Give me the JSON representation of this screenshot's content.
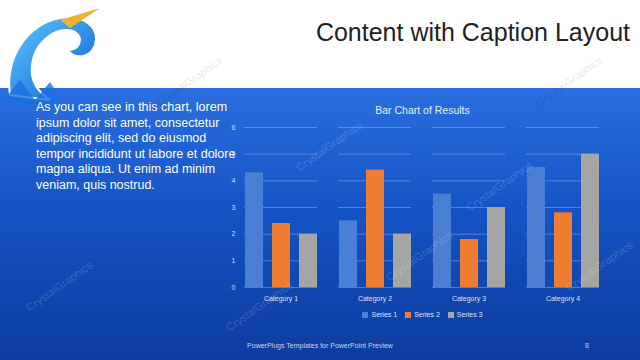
{
  "slide": {
    "title": "Content with Caption Layout",
    "caption": "As you can see in this chart, lorem ipsum dolor sit amet, consectetur adipiscing elit, sed do eiusmod tempor incididunt ut labore et dolore magna aliqua. Ut enim ad minim veniam, quis nostrud.",
    "footer": "PowerPlugs Templates for PowerPoint Preview",
    "page": "8",
    "watermark": "CrystalGraphics"
  },
  "chart_data": {
    "type": "bar",
    "title": "Bar Chart of Results",
    "categories": [
      "Category 1",
      "Category 2",
      "Category 3",
      "Category 4"
    ],
    "series": [
      {
        "name": "Series 1",
        "color": "#4a7fd4",
        "values": [
          4.3,
          2.5,
          3.5,
          4.5
        ]
      },
      {
        "name": "Series 2",
        "color": "#ed7d31",
        "values": [
          2.4,
          4.4,
          1.8,
          2.8
        ]
      },
      {
        "name": "Series 3",
        "color": "#a5a5a5",
        "values": [
          2.0,
          2.0,
          3.0,
          5.0
        ]
      }
    ],
    "ylim": [
      0,
      6
    ],
    "yticks": [
      0,
      1,
      2,
      3,
      4,
      5,
      6
    ],
    "grid": true,
    "legend": "bottom"
  }
}
